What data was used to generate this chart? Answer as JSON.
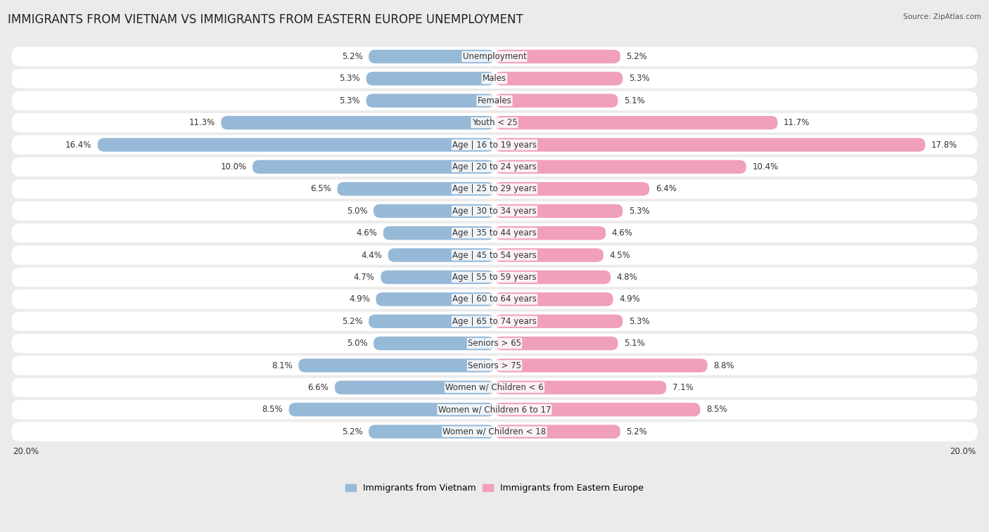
{
  "title": "IMMIGRANTS FROM VIETNAM VS IMMIGRANTS FROM EASTERN EUROPE UNEMPLOYMENT",
  "source": "Source: ZipAtlas.com",
  "categories": [
    "Unemployment",
    "Males",
    "Females",
    "Youth < 25",
    "Age | 16 to 19 years",
    "Age | 20 to 24 years",
    "Age | 25 to 29 years",
    "Age | 30 to 34 years",
    "Age | 35 to 44 years",
    "Age | 45 to 54 years",
    "Age | 55 to 59 years",
    "Age | 60 to 64 years",
    "Age | 65 to 74 years",
    "Seniors > 65",
    "Seniors > 75",
    "Women w/ Children < 6",
    "Women w/ Children 6 to 17",
    "Women w/ Children < 18"
  ],
  "vietnam_values": [
    5.2,
    5.3,
    5.3,
    11.3,
    16.4,
    10.0,
    6.5,
    5.0,
    4.6,
    4.4,
    4.7,
    4.9,
    5.2,
    5.0,
    8.1,
    6.6,
    8.5,
    5.2
  ],
  "eastern_europe_values": [
    5.2,
    5.3,
    5.1,
    11.7,
    17.8,
    10.4,
    6.4,
    5.3,
    4.6,
    4.5,
    4.8,
    4.9,
    5.3,
    5.1,
    8.8,
    7.1,
    8.5,
    5.2
  ],
  "vietnam_color": "#97b9d8",
  "eastern_europe_color": "#f0a0b8",
  "background_color": "#ebebeb",
  "bar_bg_color": "#ffffff",
  "row_stripe_color": "#f8f8f8",
  "max_value": 20.0,
  "legend_vietnam": "Immigrants from Vietnam",
  "legend_eastern_europe": "Immigrants from Eastern Europe",
  "title_fontsize": 12,
  "label_fontsize": 8.5,
  "value_fontsize": 8.5
}
